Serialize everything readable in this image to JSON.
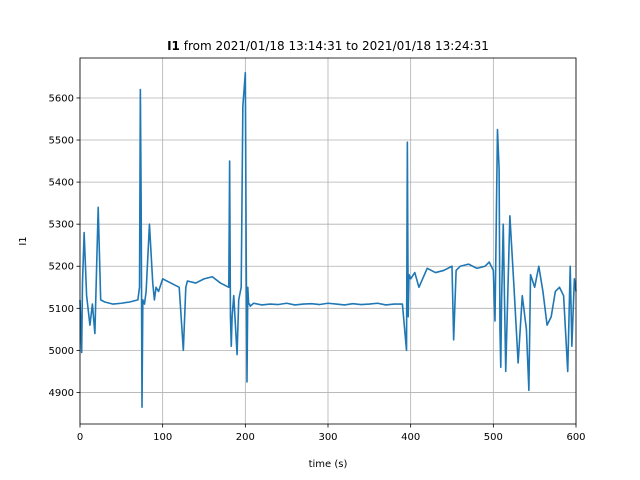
{
  "chart_data": {
    "type": "line",
    "title_bold": "I1",
    "title_rest": " from 2021/01/18 13:14:31 to 2021/01/18 13:24:31",
    "xlabel": "time (s)",
    "ylabel": "I1",
    "xlim": [
      0,
      600
    ],
    "ylim": [
      4825,
      5695
    ],
    "xticks": [
      0,
      100,
      200,
      300,
      400,
      500,
      600
    ],
    "yticks": [
      4900,
      5000,
      5100,
      5200,
      5300,
      5400,
      5500,
      5600
    ],
    "grid": true,
    "line_color": "#1f77b4",
    "series": [
      {
        "x": [
          0,
          2,
          3,
          5,
          8,
          12,
          15,
          18,
          22,
          25,
          30,
          40,
          50,
          60,
          70,
          72,
          73,
          74,
          75,
          76,
          78,
          80,
          84,
          88,
          90,
          92,
          95,
          100,
          110,
          120,
          125,
          128,
          130,
          140,
          150,
          160,
          170,
          180,
          181,
          182,
          183,
          184,
          186,
          190,
          192,
          195,
          197,
          200,
          201,
          202,
          203,
          204,
          205,
          206,
          210,
          220,
          230,
          240,
          250,
          260,
          270,
          280,
          290,
          300,
          310,
          320,
          330,
          340,
          350,
          360,
          370,
          380,
          390,
          395,
          396,
          397,
          398,
          400,
          405,
          410,
          420,
          430,
          440,
          450,
          452,
          455,
          460,
          470,
          480,
          490,
          495,
          500,
          502,
          505,
          507,
          508,
          509,
          510,
          512,
          515,
          520,
          525,
          530,
          535,
          540,
          543,
          545,
          550,
          555,
          560,
          565,
          570,
          575,
          580,
          585,
          590,
          593,
          595,
          598,
          600
        ],
        "y": [
          5120,
          4995,
          5160,
          5280,
          5130,
          5060,
          5110,
          5040,
          5340,
          5120,
          5115,
          5110,
          5112,
          5115,
          5120,
          5150,
          5620,
          5350,
          4865,
          5120,
          5110,
          5140,
          5300,
          5160,
          5120,
          5150,
          5140,
          5170,
          5160,
          5150,
          5000,
          5150,
          5165,
          5160,
          5170,
          5175,
          5160,
          5150,
          5450,
          5080,
          5010,
          5080,
          5130,
          4990,
          5120,
          5150,
          5580,
          5660,
          5250,
          4925,
          5150,
          5110,
          5110,
          5105,
          5112,
          5108,
          5110,
          5109,
          5112,
          5108,
          5110,
          5111,
          5109,
          5112,
          5110,
          5108,
          5111,
          5109,
          5110,
          5112,
          5108,
          5110,
          5110,
          5000,
          5495,
          5080,
          5180,
          5170,
          5185,
          5150,
          5195,
          5185,
          5190,
          5200,
          5025,
          5190,
          5200,
          5205,
          5195,
          5200,
          5210,
          5190,
          5070,
          5525,
          5430,
          5050,
          4960,
          5120,
          5300,
          4950,
          5320,
          5150,
          4970,
          5130,
          5050,
          4905,
          5180,
          5150,
          5200,
          5140,
          5060,
          5080,
          5140,
          5150,
          5130,
          4950,
          5200,
          5010,
          5170,
          5140
        ]
      }
    ]
  }
}
